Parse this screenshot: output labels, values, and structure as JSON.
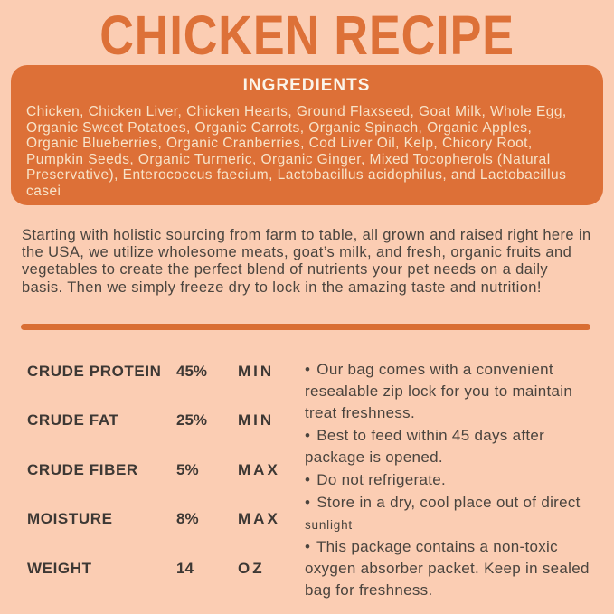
{
  "colors": {
    "background": "#fbcdb3",
    "accent_orange": "#dd7037",
    "panel_text": "#f7e3c9",
    "body_text": "#4a443e"
  },
  "title": "CHICKEN RECIPE",
  "ingredients_panel": {
    "heading": "INGREDIENTS",
    "text": "Chicken, Chicken Liver, Chicken Hearts, Ground Flaxseed, Goat Milk, Whole Egg, Organic Sweet Potatoes, Organic Carrots, Organic Spinach, Organic Apples, Organic Blueberries, Organic Cranberries, Cod Liver Oil, Kelp, Chicory Root, Pumpkin Seeds, Organic Turmeric, Organic Ginger, Mixed Tocopherols (Natural Preservative), Enterococcus faecium, Lactobacillus acidophilus, and Lactobacillus casei"
  },
  "description": "Starting with holistic sourcing from farm to table, all grown and raised right here in the USA, we utilize wholesome meats, goat’s milk, and fresh, organic fruits and vegetables to create the perfect blend of nutrients your pet needs on a daily basis. Then we simply freeze dry to lock in the amazing taste and nutrition!",
  "analysis": {
    "rows": [
      {
        "label": "CRUDE PROTEIN",
        "value": "45%",
        "qualifier": "MIN"
      },
      {
        "label": "CRUDE FAT",
        "value": "25%",
        "qualifier": "MIN"
      },
      {
        "label": "CRUDE FIBER",
        "value": "5%",
        "qualifier": "MAX"
      },
      {
        "label": "MOISTURE",
        "value": "8%",
        "qualifier": "MAX"
      },
      {
        "label": "WEIGHT",
        "value": "14",
        "qualifier": "OZ"
      }
    ]
  },
  "care": {
    "bullet": "•",
    "items": [
      {
        "text": "Our bag comes with a convenient resealable zip lock for you to maintain treat freshness.",
        "small_tail": ""
      },
      {
        "text": "Best to feed within 45 days after package is opened.",
        "small_tail": ""
      },
      {
        "text": "Do not refrigerate.",
        "small_tail": ""
      },
      {
        "text": "Store in a dry, cool place out of direct",
        "small_tail": "sunlight"
      },
      {
        "text": "This package contains a non-toxic oxygen absorber packet. Keep in sealed bag for freshness.",
        "small_tail": ""
      }
    ]
  }
}
